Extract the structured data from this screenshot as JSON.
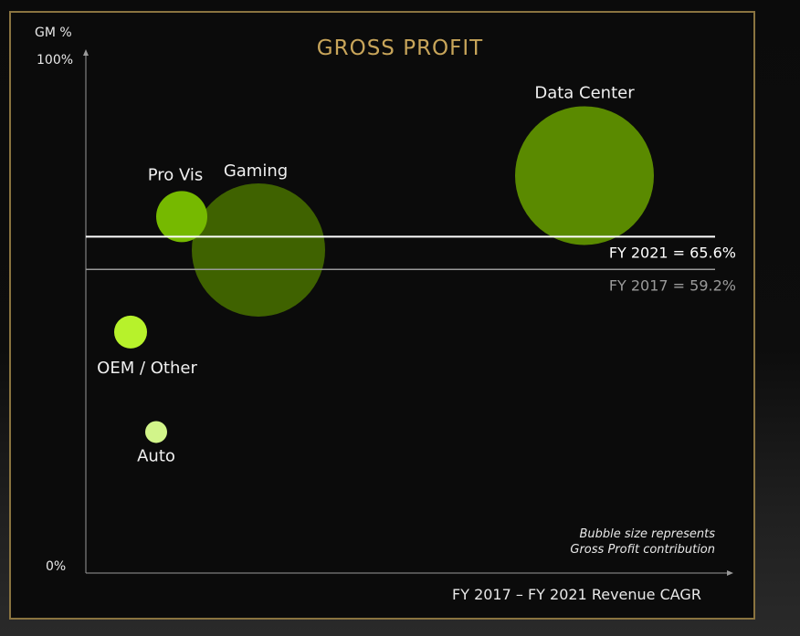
{
  "chart_data": {
    "type": "scatter",
    "title": "GROSS PROFIT",
    "ylabel": "GM %",
    "xlabel": "FY 2017 – FY 2021 Revenue CAGR",
    "y_ticks": [
      "100%",
      "0%"
    ],
    "ylim": [
      0,
      100
    ],
    "note_lines": [
      "Bubble size represents",
      "Gross Profit contribution"
    ],
    "reference_lines": [
      {
        "label": "FY 2021 = 65.6%",
        "value": 65.6,
        "color": "#ffffff"
      },
      {
        "label": "FY 2017 = 59.2%",
        "value": 59.2,
        "color": "#9a9a9a"
      }
    ],
    "series": [
      {
        "label": "Data Center",
        "x": 78,
        "y": 77.5,
        "size": 76,
        "color": "#5a8a00"
      },
      {
        "label": "Gaming",
        "x": 27,
        "y": 63,
        "size": 73,
        "color": "#3f6200"
      },
      {
        "label": "Pro Vis",
        "x": 15,
        "y": 69.5,
        "size": 28,
        "color": "#76b900"
      },
      {
        "label": "OEM / Other",
        "x": 7,
        "y": 47,
        "size": 18,
        "color": "#b7f22b"
      },
      {
        "label": "Auto",
        "x": 11,
        "y": 27.5,
        "size": 12,
        "color": "#d2f58a"
      }
    ]
  }
}
